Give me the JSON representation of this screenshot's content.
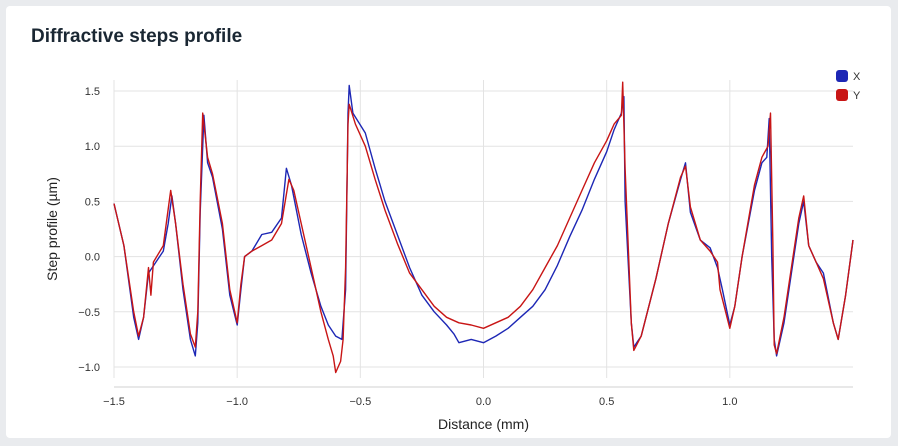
{
  "card": {
    "title": "Diffractive steps profile"
  },
  "chart_data": {
    "type": "line",
    "xlabel": "Distance (mm)",
    "ylabel": "Step profile (µm)",
    "xlim": [
      -1.5,
      1.5
    ],
    "ylim": [
      -1.1,
      1.6
    ],
    "xticks": [
      -1.5,
      -1.0,
      -0.5,
      0.0,
      0.5,
      1.0
    ],
    "xtick_labels": [
      "−1.5",
      "−1.0",
      "−0.5",
      "0.0",
      "0.5",
      "1.0"
    ],
    "yticks": [
      1.5,
      1.0,
      0.5,
      0.0,
      -0.5,
      -1.0
    ],
    "ytick_labels": [
      "1.5",
      "1.0",
      "0.5",
      "0.0",
      "−0.5",
      "−1.0"
    ],
    "grid": true,
    "legend_position": "top-right",
    "series": [
      {
        "name": "X",
        "color": "#1d27b5",
        "points": [
          [
            -1.5,
            0.48
          ],
          [
            -1.46,
            0.1
          ],
          [
            -1.42,
            -0.55
          ],
          [
            -1.4,
            -0.75
          ],
          [
            -1.38,
            -0.55
          ],
          [
            -1.36,
            -0.15
          ],
          [
            -1.33,
            -0.05
          ],
          [
            -1.3,
            0.05
          ],
          [
            -1.28,
            0.3
          ],
          [
            -1.265,
            0.55
          ],
          [
            -1.25,
            0.3
          ],
          [
            -1.22,
            -0.3
          ],
          [
            -1.19,
            -0.75
          ],
          [
            -1.17,
            -0.9
          ],
          [
            -1.16,
            -0.6
          ],
          [
            -1.15,
            0.4
          ],
          [
            -1.135,
            1.28
          ],
          [
            -1.12,
            0.85
          ],
          [
            -1.1,
            0.72
          ],
          [
            -1.06,
            0.25
          ],
          [
            -1.03,
            -0.35
          ],
          [
            -1.0,
            -0.62
          ],
          [
            -0.985,
            -0.3
          ],
          [
            -0.97,
            0.0
          ],
          [
            -0.94,
            0.05
          ],
          [
            -0.9,
            0.2
          ],
          [
            -0.86,
            0.22
          ],
          [
            -0.82,
            0.35
          ],
          [
            -0.8,
            0.8
          ],
          [
            -0.78,
            0.65
          ],
          [
            -0.74,
            0.2
          ],
          [
            -0.7,
            -0.15
          ],
          [
            -0.66,
            -0.45
          ],
          [
            -0.63,
            -0.62
          ],
          [
            -0.6,
            -0.72
          ],
          [
            -0.575,
            -0.75
          ],
          [
            -0.56,
            -0.3
          ],
          [
            -0.55,
            1.3
          ],
          [
            -0.545,
            1.55
          ],
          [
            -0.53,
            1.3
          ],
          [
            -0.48,
            1.12
          ],
          [
            -0.44,
            0.8
          ],
          [
            -0.4,
            0.5
          ],
          [
            -0.35,
            0.2
          ],
          [
            -0.3,
            -0.1
          ],
          [
            -0.25,
            -0.35
          ],
          [
            -0.2,
            -0.5
          ],
          [
            -0.15,
            -0.62
          ],
          [
            -0.12,
            -0.7
          ],
          [
            -0.1,
            -0.78
          ],
          [
            -0.05,
            -0.75
          ],
          [
            0.0,
            -0.78
          ],
          [
            0.05,
            -0.72
          ],
          [
            0.1,
            -0.65
          ],
          [
            0.15,
            -0.55
          ],
          [
            0.2,
            -0.45
          ],
          [
            0.25,
            -0.3
          ],
          [
            0.3,
            -0.08
          ],
          [
            0.35,
            0.18
          ],
          [
            0.4,
            0.42
          ],
          [
            0.45,
            0.7
          ],
          [
            0.5,
            0.95
          ],
          [
            0.53,
            1.15
          ],
          [
            0.56,
            1.3
          ],
          [
            0.57,
            1.45
          ],
          [
            0.575,
            0.5
          ],
          [
            0.6,
            -0.6
          ],
          [
            0.61,
            -0.82
          ],
          [
            0.64,
            -0.72
          ],
          [
            0.7,
            -0.2
          ],
          [
            0.75,
            0.3
          ],
          [
            0.8,
            0.7
          ],
          [
            0.82,
            0.85
          ],
          [
            0.84,
            0.4
          ],
          [
            0.88,
            0.15
          ],
          [
            0.92,
            0.08
          ],
          [
            0.95,
            -0.1
          ],
          [
            0.97,
            -0.3
          ],
          [
            1.0,
            -0.62
          ],
          [
            1.02,
            -0.45
          ],
          [
            1.05,
            0.0
          ],
          [
            1.1,
            0.6
          ],
          [
            1.13,
            0.85
          ],
          [
            1.15,
            0.9
          ],
          [
            1.16,
            1.25
          ],
          [
            1.17,
            0.0
          ],
          [
            1.18,
            -0.75
          ],
          [
            1.19,
            -0.9
          ],
          [
            1.22,
            -0.6
          ],
          [
            1.25,
            -0.15
          ],
          [
            1.28,
            0.3
          ],
          [
            1.3,
            0.5
          ],
          [
            1.32,
            0.1
          ],
          [
            1.35,
            -0.05
          ],
          [
            1.38,
            -0.15
          ],
          [
            1.42,
            -0.6
          ],
          [
            1.44,
            -0.75
          ],
          [
            1.47,
            -0.35
          ],
          [
            1.5,
            0.15
          ]
        ]
      },
      {
        "name": "Y",
        "color": "#c81515",
        "points": [
          [
            -1.5,
            0.48
          ],
          [
            -1.46,
            0.1
          ],
          [
            -1.42,
            -0.5
          ],
          [
            -1.4,
            -0.72
          ],
          [
            -1.38,
            -0.55
          ],
          [
            -1.36,
            -0.1
          ],
          [
            -1.35,
            -0.35
          ],
          [
            -1.34,
            -0.05
          ],
          [
            -1.3,
            0.1
          ],
          [
            -1.27,
            0.6
          ],
          [
            -1.25,
            0.3
          ],
          [
            -1.22,
            -0.25
          ],
          [
            -1.19,
            -0.7
          ],
          [
            -1.17,
            -0.82
          ],
          [
            -1.16,
            -0.5
          ],
          [
            -1.15,
            0.5
          ],
          [
            -1.14,
            1.3
          ],
          [
            -1.12,
            0.9
          ],
          [
            -1.1,
            0.75
          ],
          [
            -1.06,
            0.3
          ],
          [
            -1.03,
            -0.3
          ],
          [
            -1.0,
            -0.6
          ],
          [
            -0.985,
            -0.25
          ],
          [
            -0.97,
            0.0
          ],
          [
            -0.94,
            0.05
          ],
          [
            -0.9,
            0.1
          ],
          [
            -0.86,
            0.15
          ],
          [
            -0.82,
            0.3
          ],
          [
            -0.79,
            0.7
          ],
          [
            -0.77,
            0.6
          ],
          [
            -0.74,
            0.3
          ],
          [
            -0.7,
            -0.1
          ],
          [
            -0.66,
            -0.5
          ],
          [
            -0.63,
            -0.75
          ],
          [
            -0.61,
            -0.9
          ],
          [
            -0.6,
            -1.05
          ],
          [
            -0.58,
            -0.95
          ],
          [
            -0.57,
            -0.75
          ],
          [
            -0.56,
            -0.1
          ],
          [
            -0.55,
            1.2
          ],
          [
            -0.545,
            1.38
          ],
          [
            -0.52,
            1.2
          ],
          [
            -0.48,
            1.0
          ],
          [
            -0.44,
            0.7
          ],
          [
            -0.4,
            0.42
          ],
          [
            -0.35,
            0.12
          ],
          [
            -0.3,
            -0.15
          ],
          [
            -0.25,
            -0.3
          ],
          [
            -0.2,
            -0.45
          ],
          [
            -0.15,
            -0.55
          ],
          [
            -0.1,
            -0.6
          ],
          [
            -0.05,
            -0.62
          ],
          [
            0.0,
            -0.65
          ],
          [
            0.05,
            -0.6
          ],
          [
            0.1,
            -0.55
          ],
          [
            0.15,
            -0.45
          ],
          [
            0.2,
            -0.3
          ],
          [
            0.25,
            -0.1
          ],
          [
            0.3,
            0.1
          ],
          [
            0.35,
            0.35
          ],
          [
            0.4,
            0.6
          ],
          [
            0.45,
            0.85
          ],
          [
            0.5,
            1.05
          ],
          [
            0.53,
            1.2
          ],
          [
            0.56,
            1.28
          ],
          [
            0.565,
            1.58
          ],
          [
            0.575,
            0.8
          ],
          [
            0.6,
            -0.6
          ],
          [
            0.61,
            -0.85
          ],
          [
            0.64,
            -0.72
          ],
          [
            0.7,
            -0.2
          ],
          [
            0.75,
            0.3
          ],
          [
            0.8,
            0.72
          ],
          [
            0.82,
            0.82
          ],
          [
            0.84,
            0.45
          ],
          [
            0.88,
            0.15
          ],
          [
            0.92,
            0.05
          ],
          [
            0.95,
            -0.05
          ],
          [
            0.96,
            -0.3
          ],
          [
            1.0,
            -0.65
          ],
          [
            1.02,
            -0.45
          ],
          [
            1.05,
            0.0
          ],
          [
            1.1,
            0.65
          ],
          [
            1.13,
            0.9
          ],
          [
            1.155,
            1.0
          ],
          [
            1.165,
            1.3
          ],
          [
            1.175,
            0.1
          ],
          [
            1.18,
            -0.8
          ],
          [
            1.19,
            -0.88
          ],
          [
            1.22,
            -0.55
          ],
          [
            1.25,
            -0.1
          ],
          [
            1.28,
            0.35
          ],
          [
            1.3,
            0.55
          ],
          [
            1.32,
            0.1
          ],
          [
            1.35,
            -0.05
          ],
          [
            1.38,
            -0.2
          ],
          [
            1.42,
            -0.6
          ],
          [
            1.44,
            -0.75
          ],
          [
            1.47,
            -0.35
          ],
          [
            1.5,
            0.15
          ]
        ]
      }
    ]
  }
}
